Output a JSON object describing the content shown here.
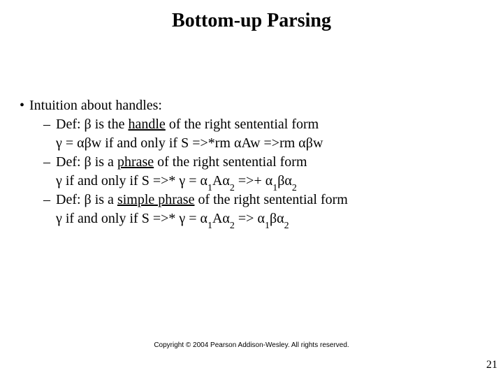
{
  "title": "Bottom-up Parsing",
  "bullet_symbol": "•",
  "dash_symbol": "–",
  "main_bullet": "Intuition about handles:",
  "defs": [
    {
      "lead": "Def: β is the ",
      "underlined": "handle",
      "tail": " of the right sentential form",
      "cont_pre": "γ = αβw if and only if S =>*rm αAw =>rm αβw",
      "cont_sub1": "",
      "cont_mid": "",
      "cont_sub2": "",
      "cont_mid2": "",
      "cont_sub3": "",
      "cont_tail": ""
    },
    {
      "lead": "Def: β is a ",
      "underlined": "phrase",
      "tail": " of the right sentential form",
      "cont_pre": "γ  if and only if S =>* γ  = α",
      "cont_sub1": "1",
      "cont_mid": "Aα",
      "cont_sub2": "2",
      "cont_mid2": " =>+ α",
      "cont_sub3": "1",
      "cont_tail_pre": "βα",
      "cont_sub4": "2",
      "cont_tail": ""
    },
    {
      "lead": "Def: β is a ",
      "underlined": "simple phrase",
      "tail": " of the right sentential form",
      "cont_pre": "γ  if and only if S =>* γ  = α",
      "cont_sub1": "1",
      "cont_mid": "Aα",
      "cont_sub2": "2",
      "cont_mid2": " => α",
      "cont_sub3": "1",
      "cont_tail_pre": "βα",
      "cont_sub4": "2",
      "cont_tail": ""
    }
  ],
  "copyright": "Copyright © 2004 Pearson Addison-Wesley. All rights reserved.",
  "page_number": "21",
  "colors": {
    "background": "#ffffff",
    "text": "#000000"
  },
  "typography": {
    "title_fontsize": 28,
    "body_fontsize": 20,
    "copyright_fontsize": 10
  }
}
